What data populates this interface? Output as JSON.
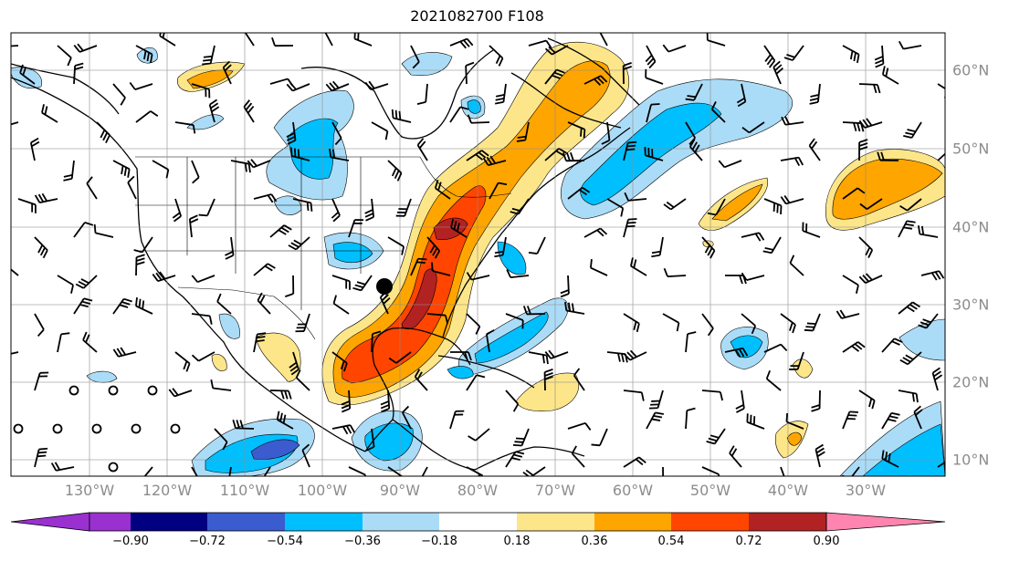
{
  "title": "2021082700 F108",
  "lon_labels": [
    "130°W",
    "120°W",
    "110°W",
    "100°W",
    "90°W",
    "80°W",
    "70°W",
    "60°W",
    "50°W",
    "40°W",
    "30°W"
  ],
  "lat_labels": [
    "60°N",
    "50°N",
    "40°N",
    "30°N",
    "20°N",
    "10°N"
  ],
  "colorbar": {
    "ticks": [
      "−0.90",
      "−0.72",
      "−0.54",
      "−0.36",
      "−0.18",
      "0.18",
      "0.36",
      "0.54",
      "0.72",
      "0.90"
    ],
    "colors": [
      "#9b30d0",
      "#000080",
      "#3a5ccf",
      "#00bfff",
      "#abdcf7",
      "#ffffff",
      "#fde68a",
      "#ffa500",
      "#ff4500",
      "#b22222",
      "#ff85b0"
    ]
  },
  "colors": {
    "neg_light": "#abdcf7",
    "neg_mid": "#00bfff",
    "neg_strong": "#3a5ccf",
    "pos_light": "#fde68a",
    "pos_mid": "#ffa500",
    "pos_strong": "#ff4500",
    "pos_max": "#b22222"
  },
  "marker": {
    "type": "filled-circle",
    "lon": -89.8,
    "lat": 32.3
  }
}
